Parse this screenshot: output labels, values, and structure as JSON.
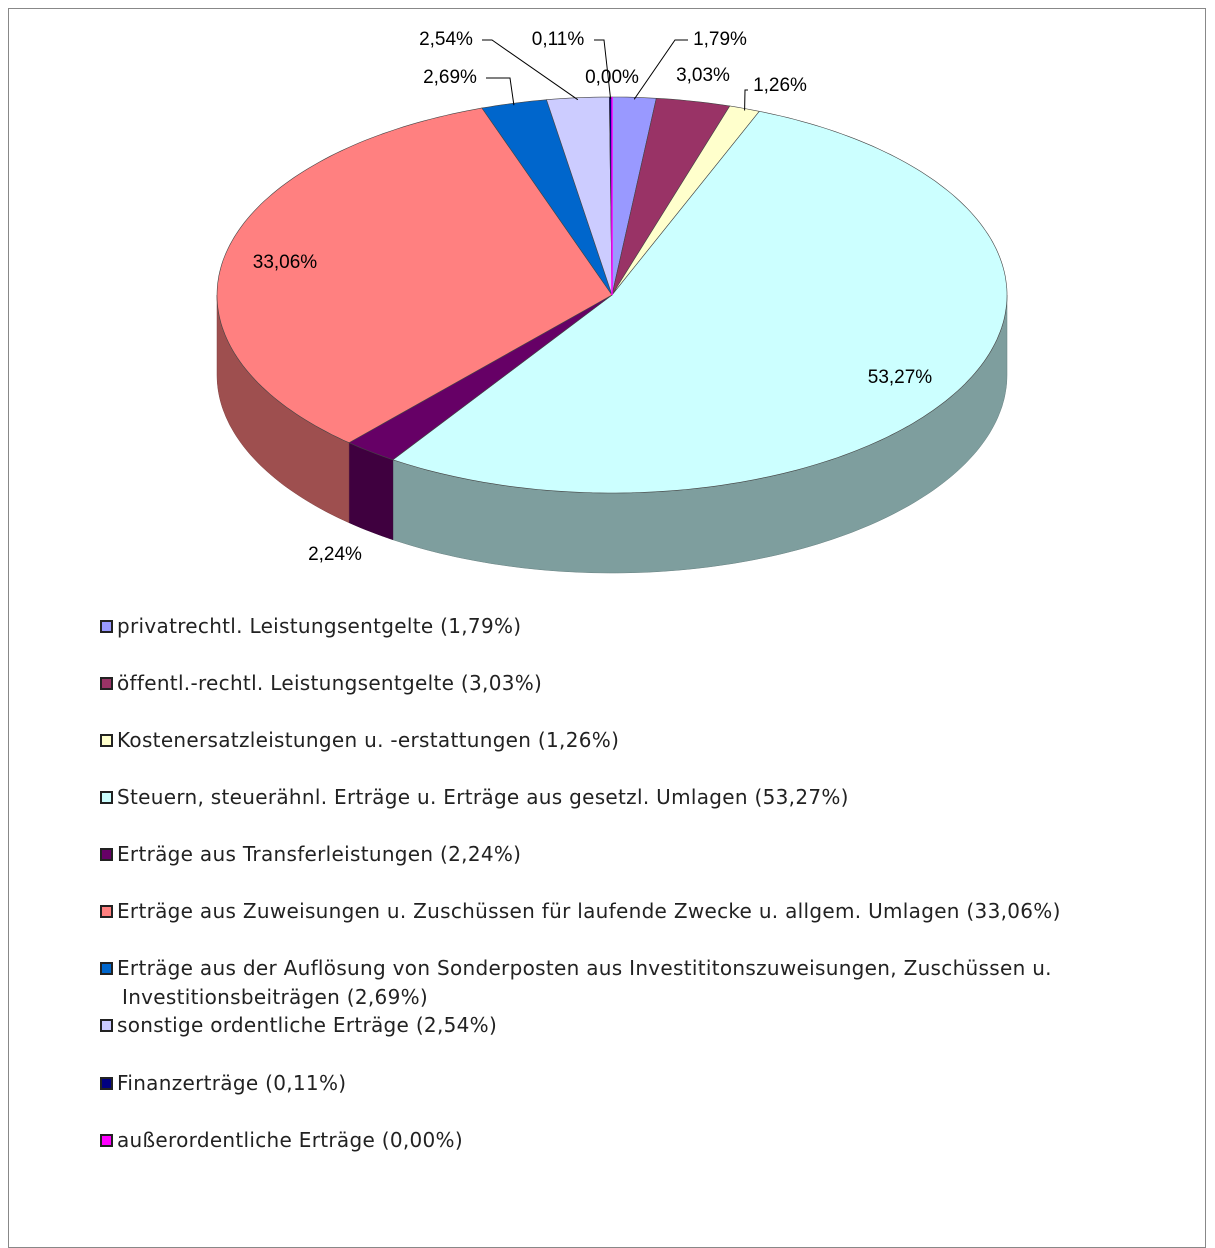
{
  "chart_data": {
    "type": "pie",
    "categories": [
      "privatrechtl. Leistungsentgelte (1,79%)",
      "öffentl.-rechtl. Leistungsentgelte (3,03%)",
      "Kostenersatzleistungen u. -erstattungen (1,26%)",
      "Steuern, steuerähnl. Erträge u. Erträge aus gesetzl. Umlagen (53,27%)",
      "Erträge aus Transferleistungen (2,24%)",
      "Erträge aus Zuweisungen u. Zuschüssen für laufende Zwecke u. allgem. Umlagen (33,06%)",
      "Erträge aus der Auflösung von Sonderposten aus Investititonszuweisungen, Zuschüssen u. Investitionsbeiträgen (2,69%)",
      "sonstige ordentliche Erträge (2,54%)",
      "Finanzerträge (0,11%)",
      "außerordentliche Erträge (0,00%)"
    ],
    "values": [
      1.79,
      3.03,
      1.26,
      53.27,
      2.24,
      33.06,
      2.69,
      2.54,
      0.11,
      0.0
    ],
    "value_labels": [
      "1,79%",
      "3,03%",
      "1,26%",
      "53,27%",
      "2,24%",
      "33,06%",
      "2,69%",
      "2,54%",
      "0,11%",
      "0,00%"
    ],
    "colors": [
      "#9999ff",
      "#993366",
      "#ffffcc",
      "#ccffff",
      "#660066",
      "#ff8080",
      "#0066cc",
      "#ccccff",
      "#000080",
      "#ff00ff"
    ]
  }
}
